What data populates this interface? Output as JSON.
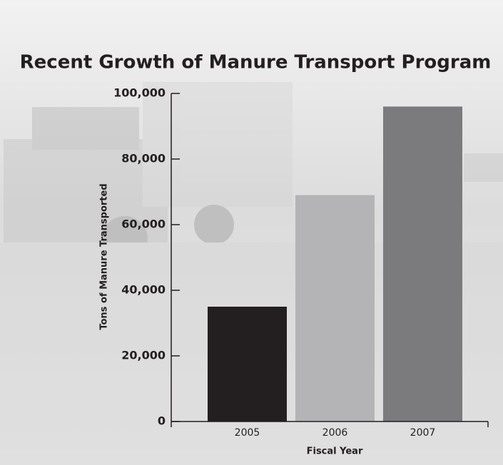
{
  "chart_data": {
    "type": "bar",
    "title": "Recent Growth of Manure Transport Program",
    "categories": [
      "2005",
      "2006",
      "2007"
    ],
    "values": [
      35000,
      69000,
      96000
    ],
    "colors": [
      "#231f20",
      "#b4b4b6",
      "#7b7b7e"
    ],
    "xlabel": "Fiscal Year",
    "ylabel": "Tons of Manure Transported",
    "ylim": [
      0,
      100000
    ],
    "yticks": [
      0,
      {
        "value": 20000,
        "label": "20,000"
      },
      {
        "value": 40000,
        "label": "40,000"
      },
      {
        "value": 60000,
        "label": "60,000"
      },
      {
        "value": 80000,
        "label": "80,000"
      },
      {
        "value": 100000,
        "label": "100,000"
      }
    ]
  }
}
